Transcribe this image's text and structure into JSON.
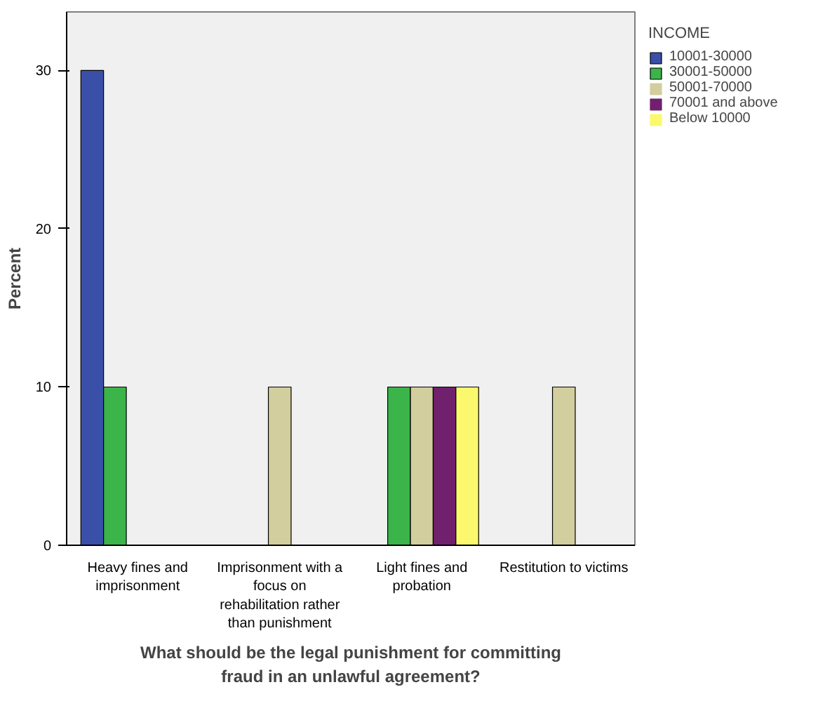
{
  "chart_data": {
    "type": "bar",
    "xlabel": "What should be the legal punishment for committing fraud in an unlawful agreement?",
    "ylabel": "Percent",
    "legend_title": "INCOME",
    "categories": [
      "Heavy fines and imprisonment",
      "Imprisonment with a focus on rehabilitation rather than punishment",
      "Light fines and probation",
      "Restitution to victims"
    ],
    "series": [
      {
        "name": "10001-30000",
        "color": "#3a4fa8",
        "values": [
          30,
          0,
          0,
          0
        ]
      },
      {
        "name": "30001-50000",
        "color": "#3bb44a",
        "values": [
          10,
          0,
          10,
          0
        ]
      },
      {
        "name": "50001-70000",
        "color": "#d3ce9e",
        "values": [
          0,
          10,
          10,
          10
        ]
      },
      {
        "name": "70001 and above",
        "color": "#71206e",
        "values": [
          0,
          0,
          10,
          0
        ]
      },
      {
        "name": "Below 10000",
        "color": "#fbf86d",
        "values": [
          0,
          0,
          10,
          0
        ]
      }
    ],
    "ylim": [
      0,
      33.7
    ],
    "yticks": [
      0,
      10,
      20,
      30
    ],
    "legend": "top right"
  }
}
